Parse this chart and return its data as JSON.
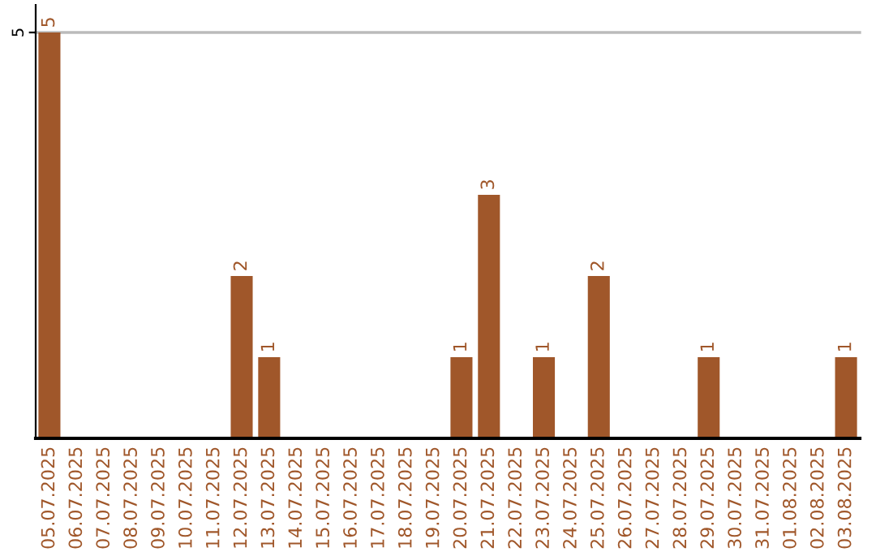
{
  "chart_data": {
    "type": "bar",
    "categories": [
      "05.07.2025",
      "06.07.2025",
      "07.07.2025",
      "08.07.2025",
      "09.07.2025",
      "10.07.2025",
      "11.07.2025",
      "12.07.2025",
      "13.07.2025",
      "14.07.2025",
      "15.07.2025",
      "16.07.2025",
      "17.07.2025",
      "18.07.2025",
      "19.07.2025",
      "20.07.2025",
      "21.07.2025",
      "22.07.2025",
      "23.07.2025",
      "24.07.2025",
      "25.07.2025",
      "26.07.2025",
      "27.07.2025",
      "28.07.2025",
      "29.07.2025",
      "30.07.2025",
      "31.07.2025",
      "01.08.2025",
      "02.08.2025",
      "03.08.2025"
    ],
    "values": [
      5,
      0,
      0,
      0,
      0,
      0,
      0,
      2,
      1,
      0,
      0,
      0,
      0,
      0,
      0,
      1,
      3,
      0,
      1,
      0,
      2,
      0,
      0,
      0,
      1,
      0,
      0,
      0,
      0,
      1
    ],
    "value_labels": [
      "5",
      null,
      null,
      null,
      null,
      null,
      null,
      "2",
      "1",
      null,
      null,
      null,
      null,
      null,
      null,
      "1",
      "3",
      null,
      "1",
      null,
      "2",
      null,
      null,
      null,
      "1",
      null,
      null,
      null,
      null,
      "1"
    ],
    "color": "#a0572a",
    "ylim": [
      0,
      5.34
    ],
    "yticks": [
      5
    ],
    "grid": "y"
  }
}
